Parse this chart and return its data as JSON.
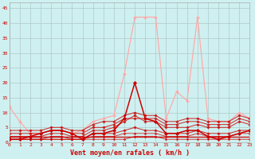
{
  "x": [
    0,
    1,
    2,
    3,
    4,
    5,
    6,
    7,
    8,
    9,
    10,
    11,
    12,
    13,
    14,
    15,
    16,
    17,
    18,
    19,
    20,
    21,
    22,
    23
  ],
  "line_rafales": [
    12,
    7,
    3,
    3,
    4,
    4,
    3,
    4,
    7,
    8,
    9,
    23,
    42,
    42,
    42,
    8,
    17,
    14,
    42,
    8,
    7,
    7,
    10,
    8
  ],
  "line_moyen": [
    1,
    1,
    2,
    3,
    4,
    4,
    3,
    1,
    3,
    3,
    4,
    8,
    20,
    8,
    7,
    3,
    3,
    4,
    4,
    2,
    1,
    2,
    3,
    4
  ],
  "line_a": [
    2,
    2,
    2,
    2,
    3,
    3,
    2,
    2,
    4,
    4,
    5,
    7,
    9,
    7,
    7,
    5,
    5,
    5,
    6,
    5,
    5,
    5,
    7,
    6
  ],
  "line_b": [
    1,
    1,
    1,
    1,
    2,
    2,
    1,
    1,
    3,
    3,
    3,
    4,
    5,
    4,
    4,
    3,
    3,
    3,
    4,
    3,
    3,
    3,
    4,
    4
  ],
  "line_c": [
    1,
    1,
    1,
    1,
    1,
    1,
    1,
    1,
    2,
    2,
    2,
    3,
    3,
    3,
    3,
    2,
    2,
    2,
    3,
    2,
    2,
    2,
    3,
    3
  ],
  "line_d": [
    3,
    3,
    3,
    3,
    4,
    4,
    3,
    3,
    5,
    5,
    6,
    8,
    8,
    8,
    8,
    6,
    6,
    7,
    7,
    6,
    6,
    6,
    8,
    7
  ],
  "line_e": [
    4,
    4,
    4,
    4,
    5,
    5,
    4,
    4,
    6,
    7,
    7,
    9,
    10,
    9,
    9,
    7,
    7,
    8,
    8,
    7,
    7,
    7,
    9,
    8
  ],
  "line_flat_low": [
    1,
    1,
    1,
    1,
    1,
    1,
    1,
    1,
    1,
    1,
    1,
    1,
    2,
    2,
    2,
    1,
    1,
    1,
    1,
    1,
    1,
    1,
    1,
    1
  ],
  "background_color": "#cff0f0",
  "grid_color": "#b0c8c8",
  "color_rafales": "#ffaaaa",
  "color_moyen": "#cc0000",
  "color_lines": "#cc0000",
  "xlabel": "Vent moyen/en rafales ( km/h )",
  "ylim": [
    0,
    47
  ],
  "xlim": [
    0,
    23
  ],
  "yticks": [
    0,
    5,
    10,
    15,
    20,
    25,
    30,
    35,
    40,
    45
  ],
  "xticks": [
    0,
    1,
    2,
    3,
    4,
    5,
    6,
    7,
    8,
    9,
    10,
    11,
    12,
    13,
    14,
    15,
    16,
    17,
    18,
    19,
    20,
    21,
    22,
    23
  ]
}
